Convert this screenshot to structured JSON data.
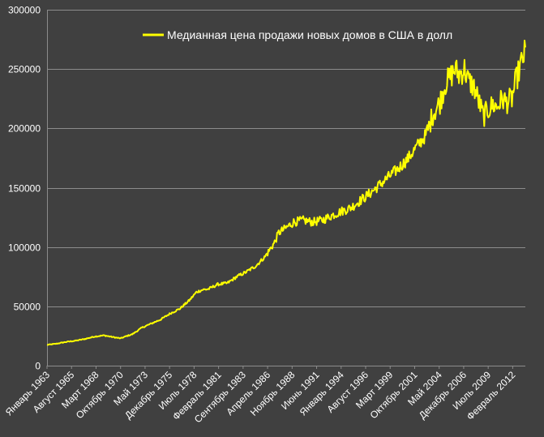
{
  "chart_data": {
    "type": "line",
    "title": "",
    "xlabel": "",
    "ylabel": "",
    "ylim": [
      0,
      300000
    ],
    "yticks": [
      0,
      50000,
      100000,
      150000,
      200000,
      250000,
      300000
    ],
    "grid": true,
    "legend_position": "top-right",
    "colors": {
      "background": "#404040",
      "series": "#ffff00",
      "grid": "#8c8c8c",
      "text": "#ffffff"
    },
    "x_tick_labels": [
      "Январь 1963",
      "Август 1965",
      "Март 1968",
      "Октябрь 1970",
      "Май 1973",
      "Декабрь 1975",
      "Июль 1978",
      "Февраль 1981",
      "Сентябрь 1983",
      "Апрель 1986",
      "Ноябрь 1988",
      "Июнь 1991",
      "Январь 1994",
      "Август 1996",
      "Март 1999",
      "Октябрь 2001",
      "Май 2004",
      "Декабрь 2006",
      "Июль 2009",
      "Февраль 2012"
    ],
    "x_range": [
      "1963-01",
      "2013-06"
    ],
    "series": [
      {
        "name": "Медианная цена продажи новых домов в США в долл",
        "x": [
          "1963-01",
          "1964-01",
          "1965-01",
          "1966-01",
          "1967-01",
          "1968-01",
          "1969-01",
          "1970-01",
          "1970-10",
          "1971-06",
          "1972-01",
          "1973-01",
          "1974-01",
          "1975-01",
          "1976-01",
          "1977-01",
          "1978-01",
          "1978-10",
          "1979-06",
          "1980-01",
          "1981-01",
          "1982-01",
          "1983-01",
          "1984-01",
          "1985-01",
          "1986-01",
          "1987-01",
          "1987-06",
          "1988-01",
          "1989-01",
          "1990-01",
          "1991-01",
          "1992-01",
          "1993-01",
          "1994-01",
          "1995-01",
          "1996-01",
          "1997-01",
          "1998-01",
          "1999-01",
          "2000-01",
          "2001-01",
          "2002-01",
          "2003-01",
          "2003-09",
          "2004-06",
          "2005-01",
          "2005-06",
          "2006-01",
          "2006-06",
          "2007-01",
          "2007-06",
          "2008-01",
          "2008-06",
          "2009-01",
          "2009-06",
          "2010-01",
          "2010-06",
          "2011-01",
          "2011-06",
          "2012-01",
          "2012-06",
          "2013-01",
          "2013-06"
        ],
        "values": [
          17500,
          18500,
          20000,
          21000,
          22500,
          24500,
          25500,
          24000,
          23000,
          25000,
          26500,
          32000,
          35500,
          39000,
          44000,
          48000,
          55000,
          62000,
          64000,
          64500,
          68500,
          69500,
          75000,
          79000,
          84000,
          92000,
          104000,
          112000,
          115000,
          121000,
          122500,
          121000,
          122500,
          126500,
          130000,
          133000,
          139000,
          145000,
          152000,
          159000,
          166000,
          174000,
          185000,
          195000,
          212000,
          222000,
          238000,
          242000,
          250000,
          245000,
          250000,
          240000,
          235000,
          225000,
          210000,
          215000,
          220000,
          218000,
          225000,
          222000,
          225000,
          240000,
          255000,
          265000
        ]
      }
    ]
  }
}
